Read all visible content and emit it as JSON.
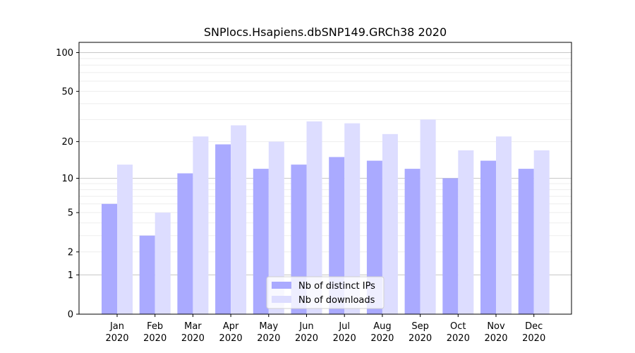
{
  "chart_data": {
    "type": "bar",
    "title": "SNPlocs.Hsapiens.dbSNP149.GRCh38 2020",
    "xlabel": "",
    "ylabel": "",
    "yscale": "log1p",
    "ylim": [
      0,
      120
    ],
    "yticks": [
      0,
      1,
      2,
      5,
      10,
      20,
      50,
      100
    ],
    "categories": [
      [
        "Jan",
        "2020"
      ],
      [
        "Feb",
        "2020"
      ],
      [
        "Mar",
        "2020"
      ],
      [
        "Apr",
        "2020"
      ],
      [
        "May",
        "2020"
      ],
      [
        "Jun",
        "2020"
      ],
      [
        "Jul",
        "2020"
      ],
      [
        "Aug",
        "2020"
      ],
      [
        "Sep",
        "2020"
      ],
      [
        "Oct",
        "2020"
      ],
      [
        "Nov",
        "2020"
      ],
      [
        "Dec",
        "2020"
      ]
    ],
    "series": [
      {
        "name": "Nb of distinct IPs",
        "color": "#aaaaff",
        "values": [
          6,
          3,
          11,
          19,
          12,
          13,
          15,
          14,
          12,
          10,
          14,
          12
        ]
      },
      {
        "name": "Nb of downloads",
        "color": "#ddddff",
        "values": [
          13,
          5,
          22,
          27,
          20,
          29,
          28,
          23,
          30,
          17,
          22,
          17
        ]
      }
    ],
    "grid": true,
    "legend_position": "bottom-center"
  }
}
